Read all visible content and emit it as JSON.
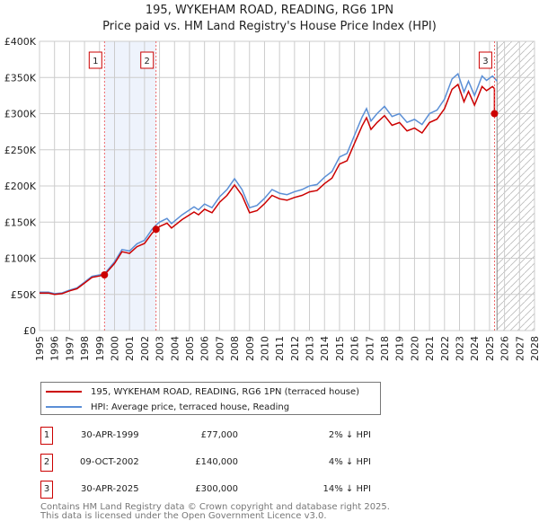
{
  "title": "195, WYKEHAM ROAD, READING, RG6 1PN",
  "subtitle": "Price paid vs. HM Land Registry's House Price Index (HPI)",
  "chart_data": {
    "type": "line",
    "ylim": [
      0,
      400000
    ],
    "xlim": [
      1995,
      2028
    ],
    "yticks": [
      {
        "v": 0,
        "l": "£0"
      },
      {
        "v": 50000,
        "l": "£50K"
      },
      {
        "v": 100000,
        "l": "£100K"
      },
      {
        "v": 150000,
        "l": "£150K"
      },
      {
        "v": 200000,
        "l": "£200K"
      },
      {
        "v": 250000,
        "l": "£250K"
      },
      {
        "v": 300000,
        "l": "£300K"
      },
      {
        "v": 350000,
        "l": "£350K"
      },
      {
        "v": 400000,
        "l": "£400K"
      }
    ],
    "xticks": [
      "1995",
      "1996",
      "1997",
      "1998",
      "1999",
      "2000",
      "2001",
      "2002",
      "2003",
      "2004",
      "2005",
      "2006",
      "2007",
      "2008",
      "2009",
      "2010",
      "2011",
      "2012",
      "2013",
      "2014",
      "2015",
      "2016",
      "2017",
      "2018",
      "2019",
      "2020",
      "2021",
      "2022",
      "2023",
      "2024",
      "2025",
      "2026",
      "2027",
      "2028"
    ],
    "series": [
      {
        "name": "195, WYKEHAM ROAD, READING, RG6 1PN (terraced house)",
        "color": "#cc0000"
      },
      {
        "name": "HPI: Average price, terraced house, Reading",
        "color": "#5b8fd6",
        "x": [
          1995,
          1995.6,
          1996,
          1996.5,
          1997,
          1997.5,
          1998,
          1998.5,
          1999,
          1999.33,
          2000,
          2000.5,
          2001,
          2001.5,
          2002,
          2002.5,
          2002.77,
          2003,
          2003.5,
          2003.8,
          2004.5,
          2005.3,
          2005.6,
          2006,
          2006.5,
          2007,
          2007.5,
          2008,
          2008.5,
          2009,
          2009.5,
          2010,
          2010.5,
          2011,
          2011.5,
          2012,
          2012.5,
          2013,
          2013.5,
          2014,
          2014.5,
          2015,
          2015.5,
          2016,
          2016.5,
          2016.8,
          2017.1,
          2017.5,
          2018,
          2018.5,
          2019,
          2019.5,
          2020,
          2020.5,
          2021,
          2021.5,
          2022,
          2022.5,
          2022.9,
          2023.3,
          2023.6,
          2024,
          2024.5,
          2024.8,
          2025.2,
          2025.5
        ],
        "values": [
          53000,
          53000,
          51000,
          52000,
          56000,
          59000,
          67000,
          75000,
          77000,
          78500,
          95000,
          112000,
          110000,
          120000,
          125000,
          140000,
          146000,
          150000,
          155000,
          148000,
          160000,
          171000,
          167000,
          175000,
          170000,
          185000,
          195000,
          210000,
          195000,
          170000,
          173000,
          183000,
          195000,
          190000,
          188000,
          192000,
          195000,
          200000,
          202000,
          212000,
          220000,
          240000,
          245000,
          270000,
          295000,
          307000,
          290000,
          300000,
          310000,
          296000,
          300000,
          288000,
          292000,
          285000,
          300000,
          305000,
          320000,
          348000,
          355000,
          330000,
          345000,
          325000,
          352000,
          346000,
          352000,
          345000
        ]
      }
    ],
    "sales": [
      {
        "n": "1",
        "date": "30-APR-1999",
        "x": 1999.33,
        "price": 77000,
        "price_label": "£77,000",
        "hpi": "2% ↓ HPI"
      },
      {
        "n": "2",
        "date": "09-OCT-2002",
        "x": 2002.77,
        "price": 140000,
        "price_label": "£140,000",
        "hpi": "4% ↓ HPI"
      },
      {
        "n": "3",
        "date": "30-APR-2025",
        "x": 2025.33,
        "price": 300000,
        "price_label": "£300,000",
        "hpi": "14% ↓ HPI"
      }
    ],
    "forecast_from": 2025.5
  },
  "footer": [
    "Contains HM Land Registry data © Crown copyright and database right 2025.",
    "This data is licensed under the Open Government Licence v3.0."
  ]
}
